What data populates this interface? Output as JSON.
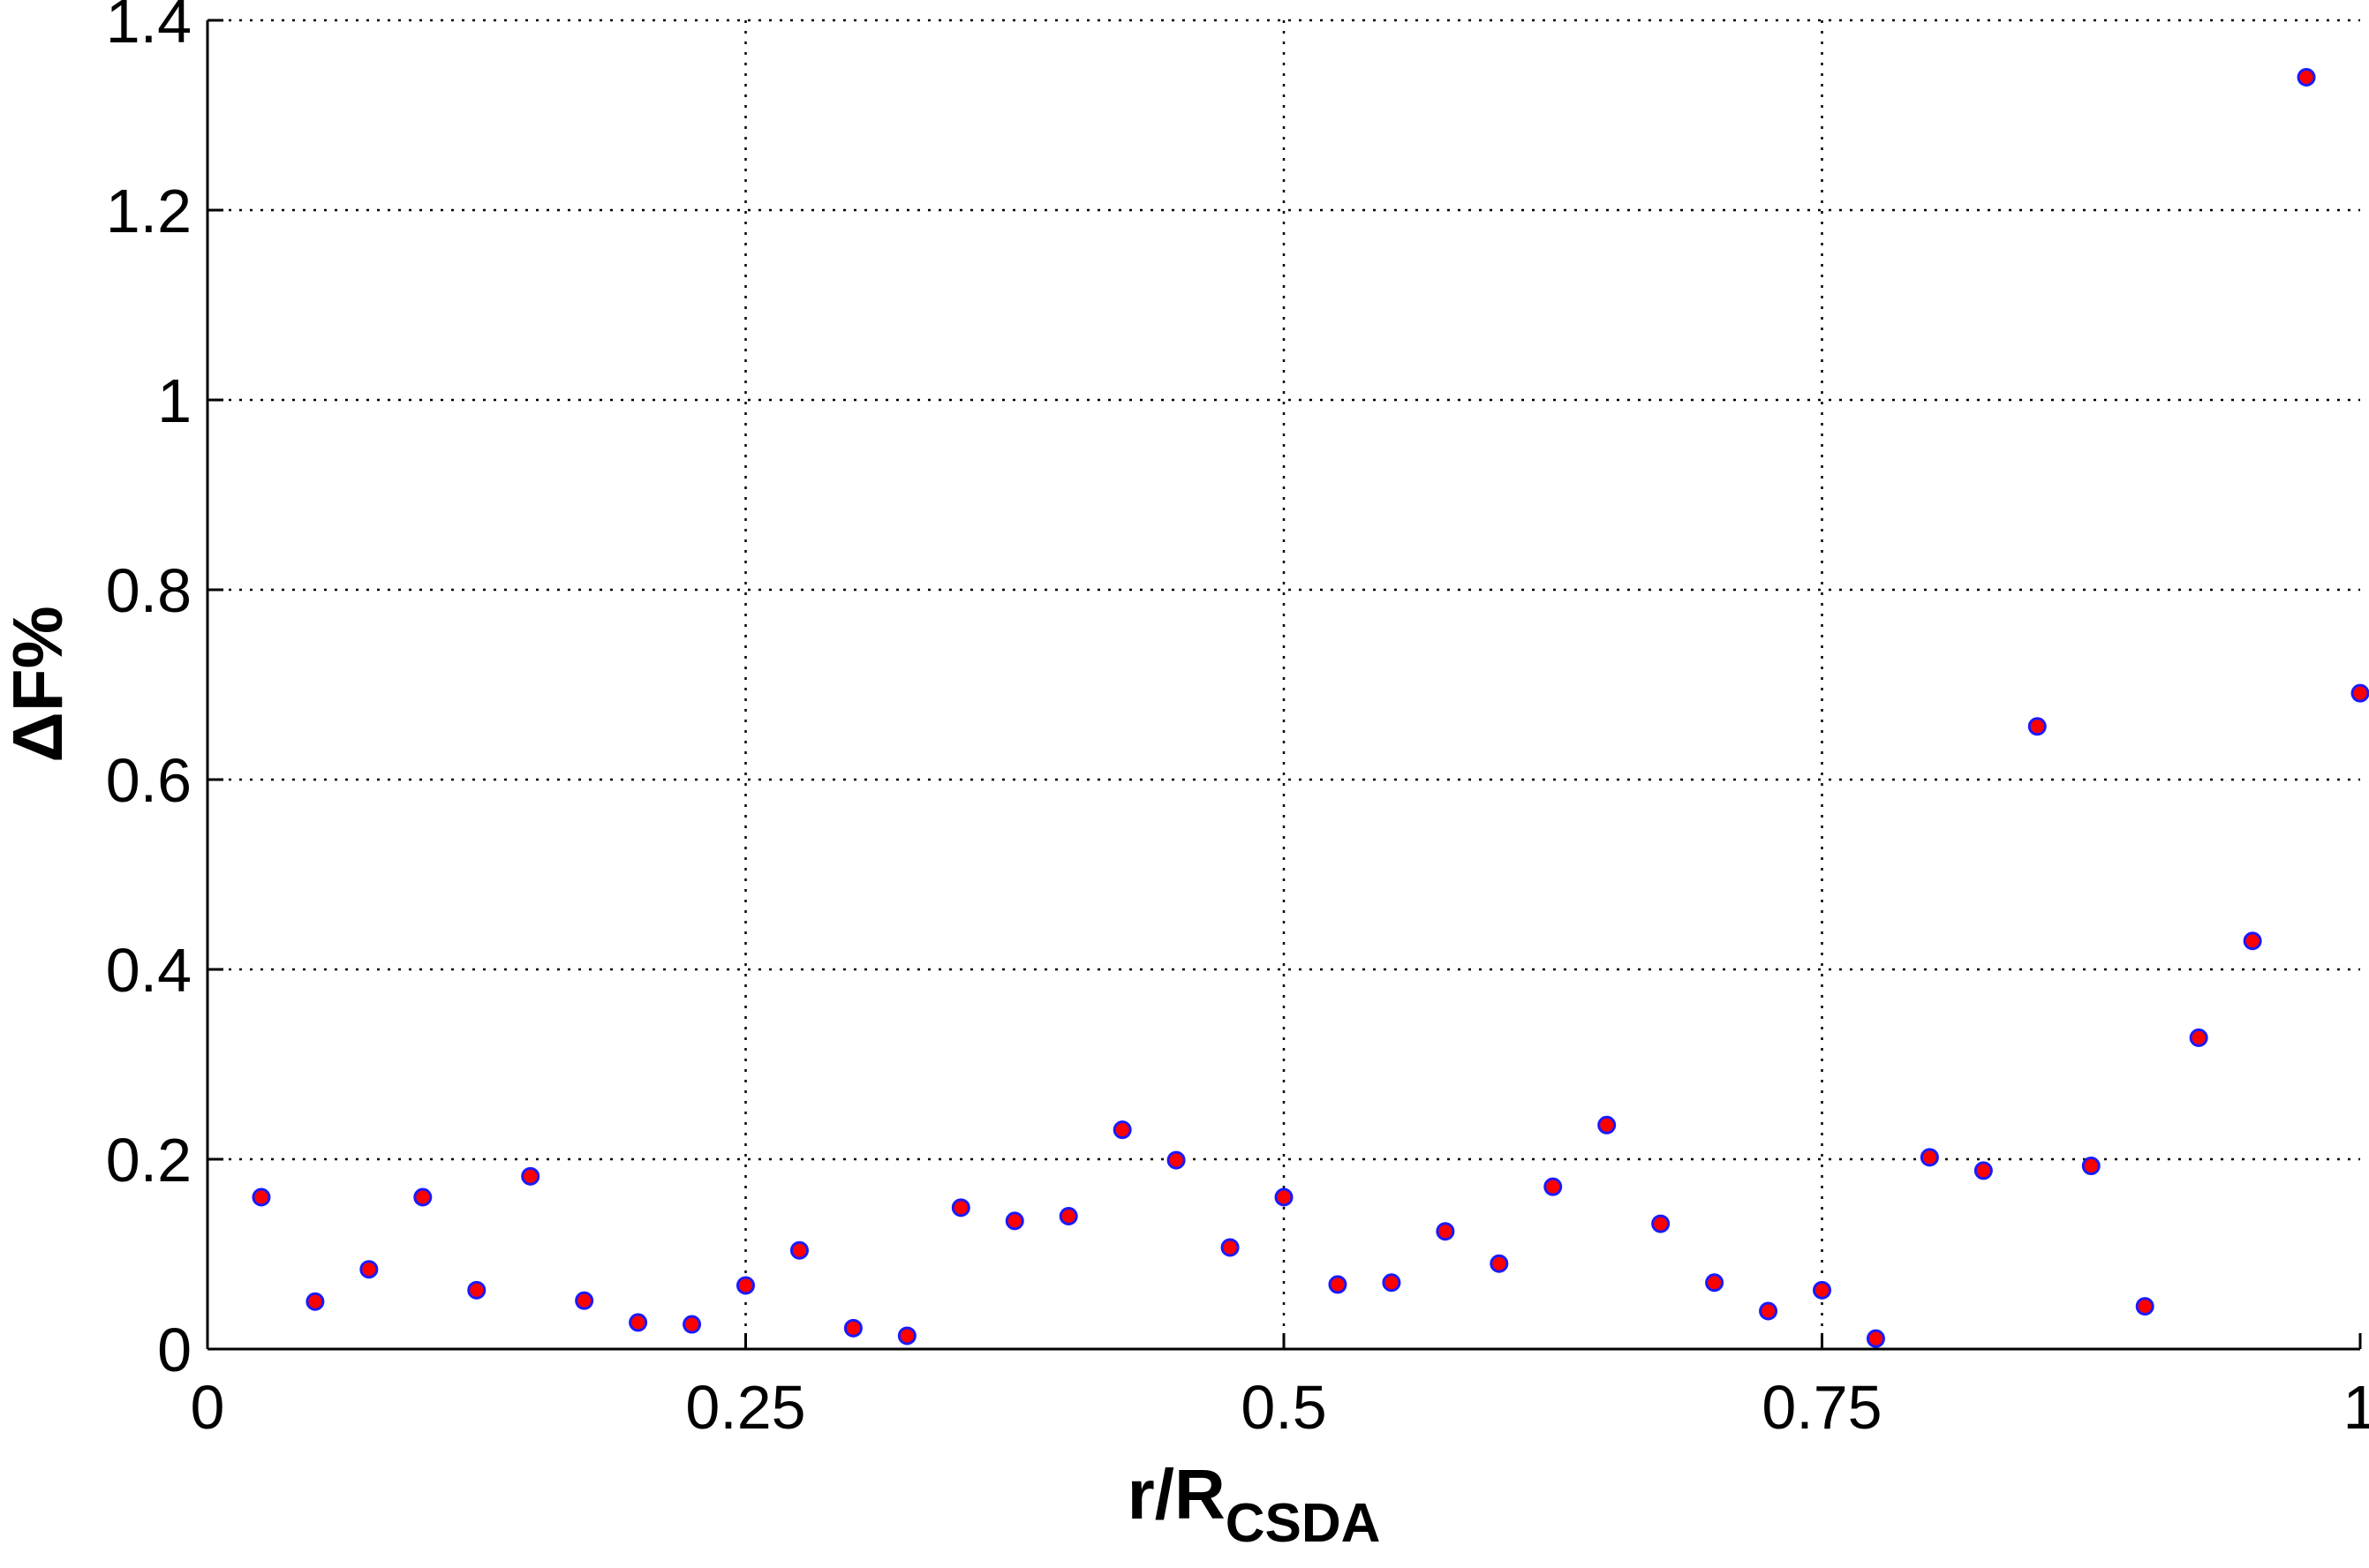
{
  "chart_data": {
    "type": "scatter",
    "xlabel": "r/R",
    "xlabel_subscript": "CSDA",
    "ylabel": "ΔF%",
    "xlim": [
      0,
      1
    ],
    "ylim": [
      0,
      1.4
    ],
    "grid": true,
    "x_ticks": [
      0,
      0.25,
      0.5,
      0.75,
      1
    ],
    "x_tick_labels": [
      "0",
      "0.25",
      "0.5",
      "0.75",
      "1"
    ],
    "y_ticks": [
      0,
      0.2,
      0.4,
      0.6,
      0.8,
      1,
      1.2,
      1.4
    ],
    "y_tick_labels": [
      "0",
      "0.2",
      "0.4",
      "0.6",
      "0.8",
      "1",
      "1.2",
      "1.4"
    ],
    "marker_fill": "#ff0000",
    "marker_edge": "#1a1aff",
    "series": [
      {
        "points": [
          {
            "x": 0.025,
            "y": 0.16
          },
          {
            "x": 0.05,
            "y": 0.05
          },
          {
            "x": 0.075,
            "y": 0.084
          },
          {
            "x": 0.1,
            "y": 0.16
          },
          {
            "x": 0.125,
            "y": 0.062
          },
          {
            "x": 0.15,
            "y": 0.182
          },
          {
            "x": 0.175,
            "y": 0.051
          },
          {
            "x": 0.2,
            "y": 0.028
          },
          {
            "x": 0.225,
            "y": 0.026
          },
          {
            "x": 0.25,
            "y": 0.067
          },
          {
            "x": 0.275,
            "y": 0.104
          },
          {
            "x": 0.3,
            "y": 0.022
          },
          {
            "x": 0.325,
            "y": 0.014
          },
          {
            "x": 0.35,
            "y": 0.149
          },
          {
            "x": 0.375,
            "y": 0.135
          },
          {
            "x": 0.4,
            "y": 0.14
          },
          {
            "x": 0.425,
            "y": 0.231
          },
          {
            "x": 0.45,
            "y": 0.199
          },
          {
            "x": 0.475,
            "y": 0.107
          },
          {
            "x": 0.5,
            "y": 0.16
          },
          {
            "x": 0.525,
            "y": 0.068
          },
          {
            "x": 0.55,
            "y": 0.07
          },
          {
            "x": 0.575,
            "y": 0.124
          },
          {
            "x": 0.6,
            "y": 0.09
          },
          {
            "x": 0.625,
            "y": 0.171
          },
          {
            "x": 0.65,
            "y": 0.236
          },
          {
            "x": 0.675,
            "y": 0.132
          },
          {
            "x": 0.7,
            "y": 0.07
          },
          {
            "x": 0.725,
            "y": 0.04
          },
          {
            "x": 0.75,
            "y": 0.062
          },
          {
            "x": 0.775,
            "y": 0.011
          },
          {
            "x": 0.8,
            "y": 0.202
          },
          {
            "x": 0.825,
            "y": 0.188
          },
          {
            "x": 0.85,
            "y": 0.656
          },
          {
            "x": 0.875,
            "y": 0.193
          },
          {
            "x": 0.9,
            "y": 0.045
          },
          {
            "x": 0.925,
            "y": 0.328
          },
          {
            "x": 0.95,
            "y": 0.43
          },
          {
            "x": 0.975,
            "y": 1.34
          },
          {
            "x": 1.0,
            "y": 0.691
          }
        ]
      }
    ]
  }
}
